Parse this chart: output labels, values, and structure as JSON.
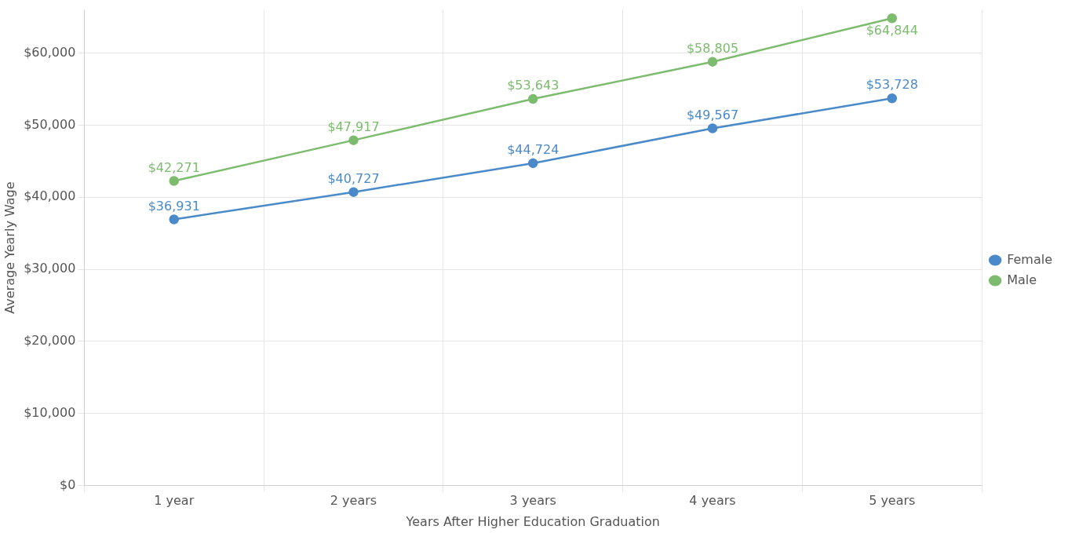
{
  "chart_data": {
    "type": "line",
    "xlabel": "Years After Higher Education Graduation",
    "ylabel": "Average Yearly Wage",
    "categories": [
      "1 year",
      "2 years",
      "3 years",
      "4 years",
      "5 years"
    ],
    "series": [
      {
        "name": "Female",
        "color": "#4a8ac9",
        "values": [
          36931,
          40727,
          44724,
          49567,
          53728
        ],
        "value_labels": [
          "$36,931",
          "$40,727",
          "$44,724",
          "$49,567",
          "$53,728"
        ]
      },
      {
        "name": "Male",
        "color": "#7dbb6f",
        "values": [
          42271,
          47917,
          53643,
          58805,
          64844
        ],
        "value_labels": [
          "$42,271",
          "$47,917",
          "$53,643",
          "$58,805",
          "$64,844"
        ]
      }
    ],
    "ylim": [
      0,
      66000
    ],
    "yticks": [
      {
        "value": 0,
        "label": "$0"
      },
      {
        "value": 10000,
        "label": "$10,000"
      },
      {
        "value": 20000,
        "label": "$20,000"
      },
      {
        "value": 30000,
        "label": "$30,000"
      },
      {
        "value": 40000,
        "label": "$40,000"
      },
      {
        "value": 50000,
        "label": "$50,000"
      },
      {
        "value": 60000,
        "label": "$60,000"
      }
    ],
    "grid": true,
    "legend": "right",
    "marker": "circle",
    "line_style": "solid"
  }
}
